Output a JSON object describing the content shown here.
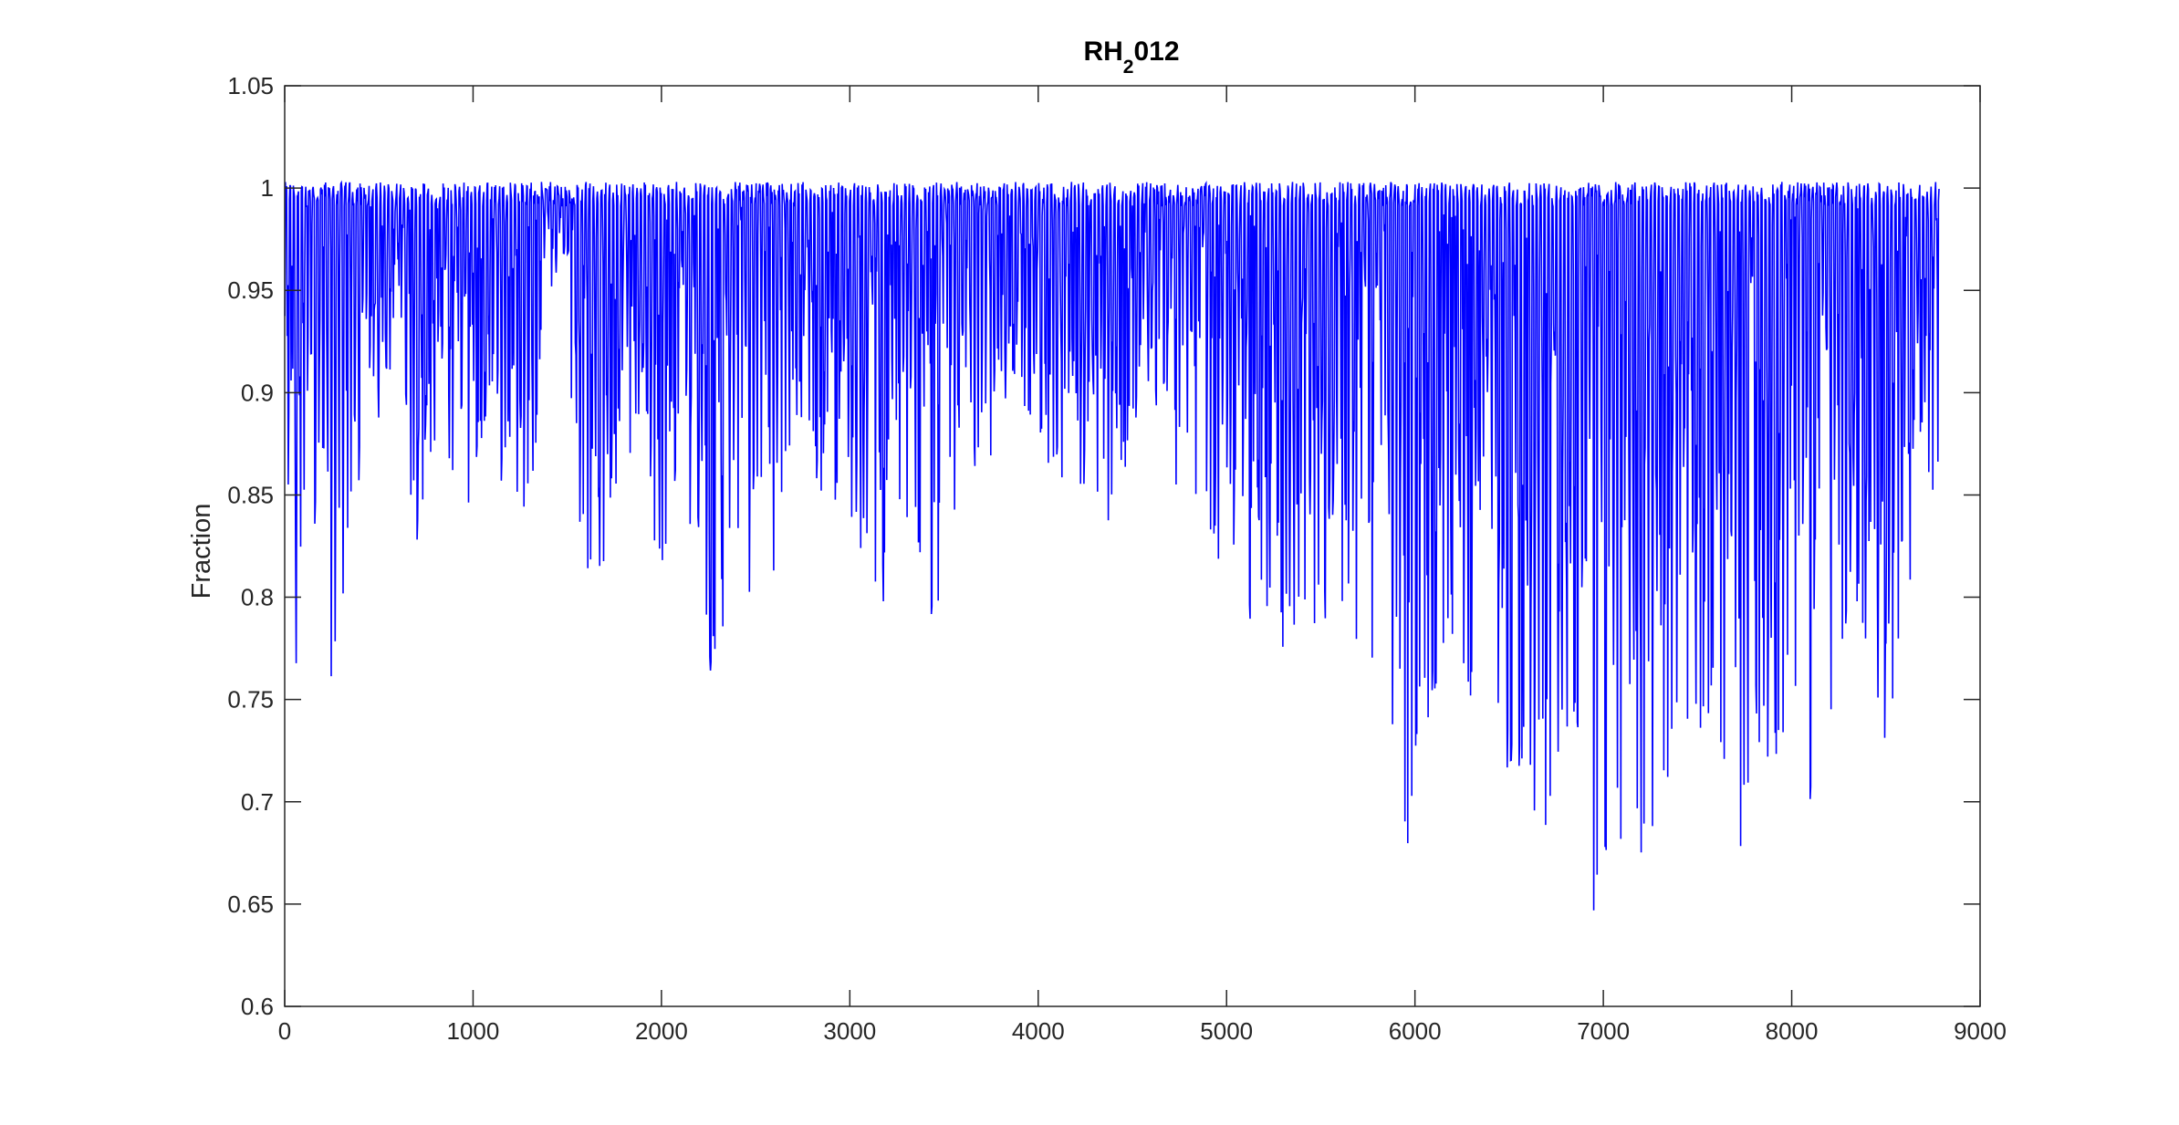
{
  "chart_data": {
    "type": "line",
    "title": {
      "prefix": "RH",
      "subscript": "2",
      "suffix": "012"
    },
    "xlabel": "",
    "ylabel": "Fraction",
    "xlim": [
      0,
      9000
    ],
    "ylim": [
      0.6,
      1.05
    ],
    "xticks": [
      0,
      1000,
      2000,
      3000,
      4000,
      5000,
      6000,
      7000,
      8000,
      9000
    ],
    "yticks": [
      0.6,
      0.65,
      0.7,
      0.75,
      0.8,
      0.85,
      0.9,
      0.95,
      1,
      1.05
    ],
    "ytick_labels": [
      "0.6",
      "0.65",
      "0.7",
      "0.75",
      "0.8",
      "0.85",
      "0.9",
      "0.95",
      "1",
      "1.05"
    ],
    "grid": false,
    "box": true,
    "series": [
      {
        "color": "#0000ff",
        "x_start": 1,
        "x_end": 8784,
        "description_points": "hourly relative humidity fraction; envelope minima per ~100 samples",
        "minima": [
          [
            0,
            0.8
          ],
          [
            70,
            0.74
          ],
          [
            150,
            0.86
          ],
          [
            200,
            0.72
          ],
          [
            240,
            0.75
          ],
          [
            300,
            0.79
          ],
          [
            400,
            0.86
          ],
          [
            500,
            0.87
          ],
          [
            600,
            0.93
          ],
          [
            700,
            0.81
          ],
          [
            800,
            0.87
          ],
          [
            900,
            0.86
          ],
          [
            1000,
            0.82
          ],
          [
            1100,
            0.85
          ],
          [
            1200,
            0.86
          ],
          [
            1300,
            0.83
          ],
          [
            1400,
            0.93
          ],
          [
            1500,
            0.95
          ],
          [
            1550,
            0.83
          ],
          [
            1650,
            0.79
          ],
          [
            1800,
            0.86
          ],
          [
            1900,
            0.87
          ],
          [
            1980,
            0.8
          ],
          [
            2100,
            0.86
          ],
          [
            2200,
            0.81
          ],
          [
            2330,
            0.71
          ],
          [
            2400,
            0.82
          ],
          [
            2500,
            0.79
          ],
          [
            2600,
            0.81
          ],
          [
            2700,
            0.88
          ],
          [
            2800,
            0.86
          ],
          [
            2900,
            0.84
          ],
          [
            3000,
            0.82
          ],
          [
            3100,
            0.81
          ],
          [
            3150,
            0.77
          ],
          [
            3250,
            0.84
          ],
          [
            3350,
            0.82
          ],
          [
            3420,
            0.79
          ],
          [
            3480,
            0.78
          ],
          [
            3600,
            0.84
          ],
          [
            3700,
            0.85
          ],
          [
            3800,
            0.88
          ],
          [
            3900,
            0.9
          ],
          [
            4000,
            0.86
          ],
          [
            4100,
            0.86
          ],
          [
            4200,
            0.84
          ],
          [
            4300,
            0.85
          ],
          [
            4400,
            0.83
          ],
          [
            4500,
            0.88
          ],
          [
            4600,
            0.9
          ],
          [
            4700,
            0.87
          ],
          [
            4750,
            0.8
          ],
          [
            4800,
            0.85
          ],
          [
            4900,
            0.82
          ],
          [
            5000,
            0.8
          ],
          [
            5100,
            0.79
          ],
          [
            5200,
            0.78
          ],
          [
            5300,
            0.77
          ],
          [
            5400,
            0.79
          ],
          [
            5500,
            0.78
          ],
          [
            5600,
            0.79
          ],
          [
            5700,
            0.77
          ],
          [
            5800,
            0.76
          ],
          [
            5900,
            0.7
          ],
          [
            5950,
            0.66
          ],
          [
            6000,
            0.72
          ],
          [
            6100,
            0.75
          ],
          [
            6200,
            0.78
          ],
          [
            6300,
            0.75
          ],
          [
            6400,
            0.74
          ],
          [
            6500,
            0.71
          ],
          [
            6600,
            0.72
          ],
          [
            6670,
            0.64
          ],
          [
            6750,
            0.71
          ],
          [
            6850,
            0.74
          ],
          [
            6950,
            0.63
          ],
          [
            7050,
            0.68
          ],
          [
            7150,
            0.67
          ],
          [
            7300,
            0.68
          ],
          [
            7400,
            0.74
          ],
          [
            7500,
            0.72
          ],
          [
            7600,
            0.74
          ],
          [
            7720,
            0.66
          ],
          [
            7800,
            0.74
          ],
          [
            7900,
            0.7
          ],
          [
            8000,
            0.76
          ],
          [
            8100,
            0.68
          ],
          [
            8200,
            0.74
          ],
          [
            8300,
            0.79
          ],
          [
            8400,
            0.77
          ],
          [
            8500,
            0.7
          ],
          [
            8600,
            0.78
          ],
          [
            8700,
            0.83
          ],
          [
            8784,
            0.84
          ]
        ],
        "maxima_level": 0.995
      }
    ]
  }
}
